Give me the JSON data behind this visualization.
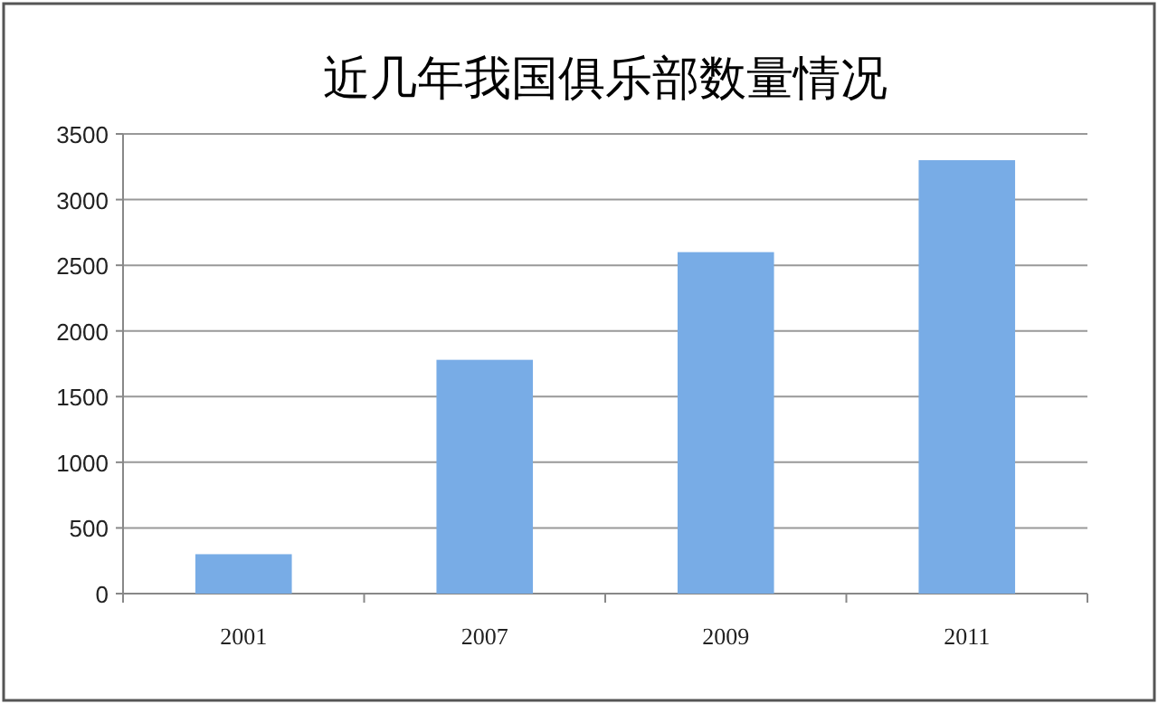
{
  "chart_data": {
    "type": "bar",
    "title": "近几年我国俱乐部数量情况",
    "categories": [
      "2001",
      "2007",
      "2009",
      "2011"
    ],
    "series": [
      {
        "color": "#78ace6",
        "values": [
          300,
          1780,
          2600,
          3300
        ]
      }
    ],
    "ylim": [
      0,
      3500
    ],
    "yticks": [
      0,
      500,
      1000,
      1500,
      2000,
      2500,
      3000,
      3500
    ],
    "grid": "y"
  }
}
